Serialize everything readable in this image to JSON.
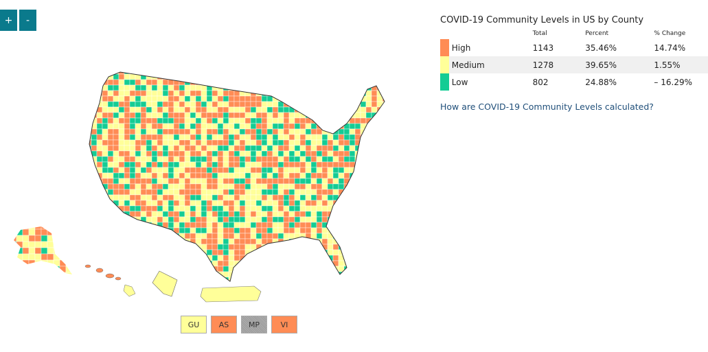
{
  "controls": {
    "zoom_in": "+",
    "zoom_out": "-"
  },
  "colors": {
    "high": "#ff8c55",
    "medium": "#ffff99",
    "low": "#14cc94",
    "no_data": "#a0a0a0",
    "button": "#0a7a8c"
  },
  "legend": {
    "title": "COVID-19 Community Levels in US by County",
    "headers": {
      "total": "Total",
      "percent": "Percent",
      "change": "% Change"
    },
    "rows": [
      {
        "level": "High",
        "total": "1143",
        "percent": "35.46%",
        "change": "14.74%"
      },
      {
        "level": "Medium",
        "total": "1278",
        "percent": "39.65%",
        "change": "1.55%"
      },
      {
        "level": "Low",
        "total": "802",
        "percent": "24.88%",
        "change": "– 16.29%"
      }
    ],
    "link": "How are COVID-19 Community Levels calculated?"
  },
  "territories": [
    {
      "code": "GU",
      "level": "medium"
    },
    {
      "code": "AS",
      "level": "high"
    },
    {
      "code": "MP",
      "level": "no_data"
    },
    {
      "code": "VI",
      "level": "high"
    }
  ]
}
